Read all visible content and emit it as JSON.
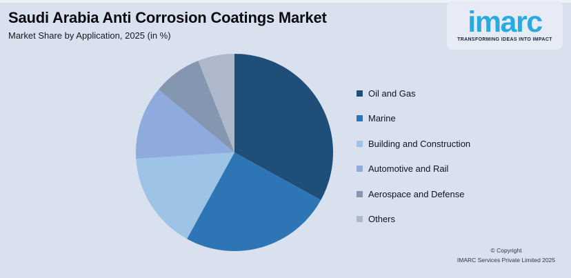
{
  "header": {
    "title": "Saudi Arabia Anti Corrosion Coatings Market",
    "subtitle": "Market Share by Application, 2025 (in %)"
  },
  "logo": {
    "text": "imarc",
    "tagline": "TRANSFORMING IDEAS INTO IMPACT",
    "brand_color": "#29abe2",
    "tagline_color": "#17233f"
  },
  "footer": {
    "line1": "© Copyright",
    "line2": "IMARC Services Private Limited 2025"
  },
  "colors": {
    "background": "#dae1ee",
    "logo_box_background": "#e6ebf5",
    "title_text": "#0a0b10",
    "legend_text": "#10121c"
  },
  "chart_data": {
    "type": "pie",
    "title": "Saudi Arabia Anti Corrosion Coatings Market",
    "subtitle": "Market Share by Application, 2025 (in %)",
    "unit": "%",
    "start_angle_deg": 0,
    "direction": "clockwise",
    "legend_position": "right",
    "labels_on_slices": false,
    "slices": [
      {
        "label": "Oil and Gas",
        "value": 33,
        "color": "#1f4e79"
      },
      {
        "label": "Marine",
        "value": 25,
        "color": "#2e75b6"
      },
      {
        "label": "Building and Construction",
        "value": 16,
        "color": "#9dc3e6"
      },
      {
        "label": "Automotive and Rail",
        "value": 12,
        "color": "#8faadc"
      },
      {
        "label": "Aerospace and Defense",
        "value": 8,
        "color": "#8496b0"
      },
      {
        "label": "Others",
        "value": 6,
        "color": "#adb9ca"
      }
    ]
  }
}
